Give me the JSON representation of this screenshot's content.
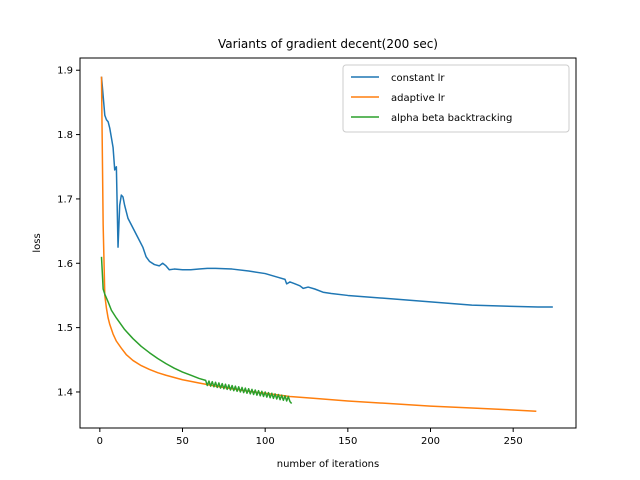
{
  "chart_data": {
    "type": "line",
    "title": "Variants of gradient decent(200 sec)",
    "xlabel": "number of iterations",
    "ylabel": "loss",
    "xlim": [
      -12,
      288
    ],
    "ylim": [
      1.344,
      1.919
    ],
    "xticks": [
      0,
      50,
      100,
      150,
      200,
      250
    ],
    "yticks": [
      1.4,
      1.5,
      1.6,
      1.7,
      1.8,
      1.9
    ],
    "grid": false,
    "legend_position": "top-right",
    "series": [
      {
        "name": "constant lr",
        "color": "#1f77b4",
        "points": [
          [
            1,
            1.89
          ],
          [
            2,
            1.86
          ],
          [
            3,
            1.83
          ],
          [
            4,
            1.823
          ],
          [
            5,
            1.82
          ],
          [
            6,
            1.81
          ],
          [
            7,
            1.795
          ],
          [
            8,
            1.78
          ],
          [
            9,
            1.745
          ],
          [
            10,
            1.75
          ],
          [
            11,
            1.625
          ],
          [
            12,
            1.69
          ],
          [
            13,
            1.706
          ],
          [
            14,
            1.703
          ],
          [
            15,
            1.69
          ],
          [
            17,
            1.67
          ],
          [
            20,
            1.655
          ],
          [
            23,
            1.64
          ],
          [
            26,
            1.625
          ],
          [
            28,
            1.61
          ],
          [
            30,
            1.603
          ],
          [
            33,
            1.598
          ],
          [
            36,
            1.596
          ],
          [
            38,
            1.6
          ],
          [
            40,
            1.596
          ],
          [
            42,
            1.59
          ],
          [
            45,
            1.591
          ],
          [
            50,
            1.59
          ],
          [
            55,
            1.59
          ],
          [
            60,
            1.591
          ],
          [
            65,
            1.592
          ],
          [
            70,
            1.592
          ],
          [
            80,
            1.591
          ],
          [
            90,
            1.588
          ],
          [
            100,
            1.584
          ],
          [
            108,
            1.578
          ],
          [
            112,
            1.575
          ],
          [
            113,
            1.568
          ],
          [
            115,
            1.571
          ],
          [
            118,
            1.568
          ],
          [
            121,
            1.565
          ],
          [
            123,
            1.561
          ],
          [
            126,
            1.563
          ],
          [
            130,
            1.56
          ],
          [
            135,
            1.555
          ],
          [
            140,
            1.553
          ],
          [
            150,
            1.55
          ],
          [
            175,
            1.545
          ],
          [
            200,
            1.54
          ],
          [
            225,
            1.535
          ],
          [
            250,
            1.533
          ],
          [
            265,
            1.532
          ],
          [
            274,
            1.532
          ]
        ]
      },
      {
        "name": "adaptive lr",
        "color": "#ff7f0e",
        "points": [
          [
            1,
            1.89
          ],
          [
            2,
            1.66
          ],
          [
            3,
            1.55
          ],
          [
            4,
            1.53
          ],
          [
            5,
            1.515
          ],
          [
            6,
            1.505
          ],
          [
            8,
            1.49
          ],
          [
            10,
            1.479
          ],
          [
            13,
            1.468
          ],
          [
            16,
            1.458
          ],
          [
            20,
            1.449
          ],
          [
            25,
            1.441
          ],
          [
            30,
            1.435
          ],
          [
            35,
            1.43
          ],
          [
            40,
            1.426
          ],
          [
            50,
            1.419
          ],
          [
            60,
            1.414
          ],
          [
            70,
            1.409
          ],
          [
            80,
            1.405
          ],
          [
            90,
            1.401
          ],
          [
            100,
            1.398
          ],
          [
            115,
            1.393
          ],
          [
            130,
            1.39
          ],
          [
            150,
            1.386
          ],
          [
            175,
            1.382
          ],
          [
            200,
            1.378
          ],
          [
            225,
            1.375
          ],
          [
            250,
            1.372
          ],
          [
            264,
            1.37
          ]
        ]
      },
      {
        "name": "alpha beta backtracking",
        "color": "#2ca02c",
        "points": [
          [
            1,
            1.61
          ],
          [
            2,
            1.56
          ],
          [
            3,
            1.552
          ],
          [
            5,
            1.54
          ],
          [
            7,
            1.527
          ],
          [
            10,
            1.515
          ],
          [
            15,
            1.497
          ],
          [
            20,
            1.483
          ],
          [
            25,
            1.471
          ],
          [
            30,
            1.461
          ],
          [
            35,
            1.452
          ],
          [
            40,
            1.444
          ],
          [
            45,
            1.437
          ],
          [
            50,
            1.431
          ],
          [
            55,
            1.426
          ],
          [
            60,
            1.421
          ],
          [
            64,
            1.418
          ],
          [
            65,
            1.41
          ],
          [
            66,
            1.417
          ],
          [
            67,
            1.409
          ],
          [
            68,
            1.416
          ],
          [
            69,
            1.408
          ],
          [
            70,
            1.415
          ],
          [
            71,
            1.407
          ],
          [
            72,
            1.414
          ],
          [
            73,
            1.406
          ],
          [
            74,
            1.413
          ],
          [
            75,
            1.405
          ],
          [
            76,
            1.412
          ],
          [
            77,
            1.404
          ],
          [
            78,
            1.411
          ],
          [
            79,
            1.403
          ],
          [
            80,
            1.41
          ],
          [
            81,
            1.402
          ],
          [
            82,
            1.409
          ],
          [
            83,
            1.401
          ],
          [
            84,
            1.408
          ],
          [
            85,
            1.4
          ],
          [
            86,
            1.407
          ],
          [
            87,
            1.399
          ],
          [
            88,
            1.406
          ],
          [
            89,
            1.398
          ],
          [
            90,
            1.405
          ],
          [
            91,
            1.397
          ],
          [
            92,
            1.404
          ],
          [
            93,
            1.396
          ],
          [
            94,
            1.403
          ],
          [
            95,
            1.395
          ],
          [
            96,
            1.402
          ],
          [
            97,
            1.394
          ],
          [
            98,
            1.401
          ],
          [
            99,
            1.393
          ],
          [
            100,
            1.4
          ],
          [
            101,
            1.392
          ],
          [
            102,
            1.399
          ],
          [
            103,
            1.391
          ],
          [
            104,
            1.398
          ],
          [
            105,
            1.39
          ],
          [
            106,
            1.397
          ],
          [
            107,
            1.389
          ],
          [
            108,
            1.396
          ],
          [
            109,
            1.388
          ],
          [
            110,
            1.395
          ],
          [
            111,
            1.387
          ],
          [
            112,
            1.394
          ],
          [
            113,
            1.386
          ],
          [
            114,
            1.393
          ],
          [
            115,
            1.385
          ],
          [
            116,
            1.382
          ]
        ]
      }
    ]
  }
}
